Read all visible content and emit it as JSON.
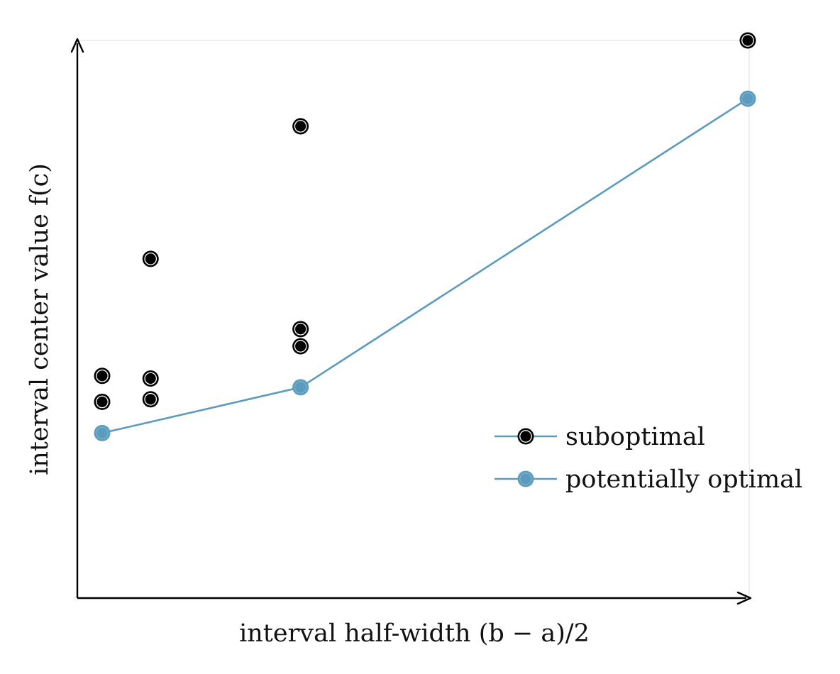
{
  "chart_data": {
    "type": "scatter",
    "xlabel": "interval half-width (b − a)/2",
    "ylabel": "interval center value f(c)",
    "ticks": "none",
    "grid": false,
    "legend_position": "bottom-right",
    "xlim": [
      0,
      1
    ],
    "ylim": [
      0,
      1
    ],
    "colors": {
      "suboptimal": "#000000",
      "potentially_optimal": "#5b9bbd",
      "axis": "#000000",
      "frame": "#dddddd"
    },
    "series": [
      {
        "name": "suboptimal",
        "style": "markers",
        "points": [
          {
            "x": 0.04,
            "y": 0.355
          },
          {
            "x": 0.04,
            "y": 0.305
          },
          {
            "x": 0.112,
            "y": 0.35
          },
          {
            "x": 0.112,
            "y": 0.31
          },
          {
            "x": 0.112,
            "y": 0.58
          },
          {
            "x": 0.335,
            "y": 0.835
          },
          {
            "x": 0.335,
            "y": 0.445
          },
          {
            "x": 0.335,
            "y": 0.412
          },
          {
            "x": 1.0,
            "y": 1.0
          }
        ]
      },
      {
        "name": "potentially optimal",
        "style": "line-markers",
        "points": [
          {
            "x": 0.04,
            "y": 0.245
          },
          {
            "x": 0.335,
            "y": 0.333
          },
          {
            "x": 1.0,
            "y": 0.888
          }
        ]
      }
    ]
  }
}
